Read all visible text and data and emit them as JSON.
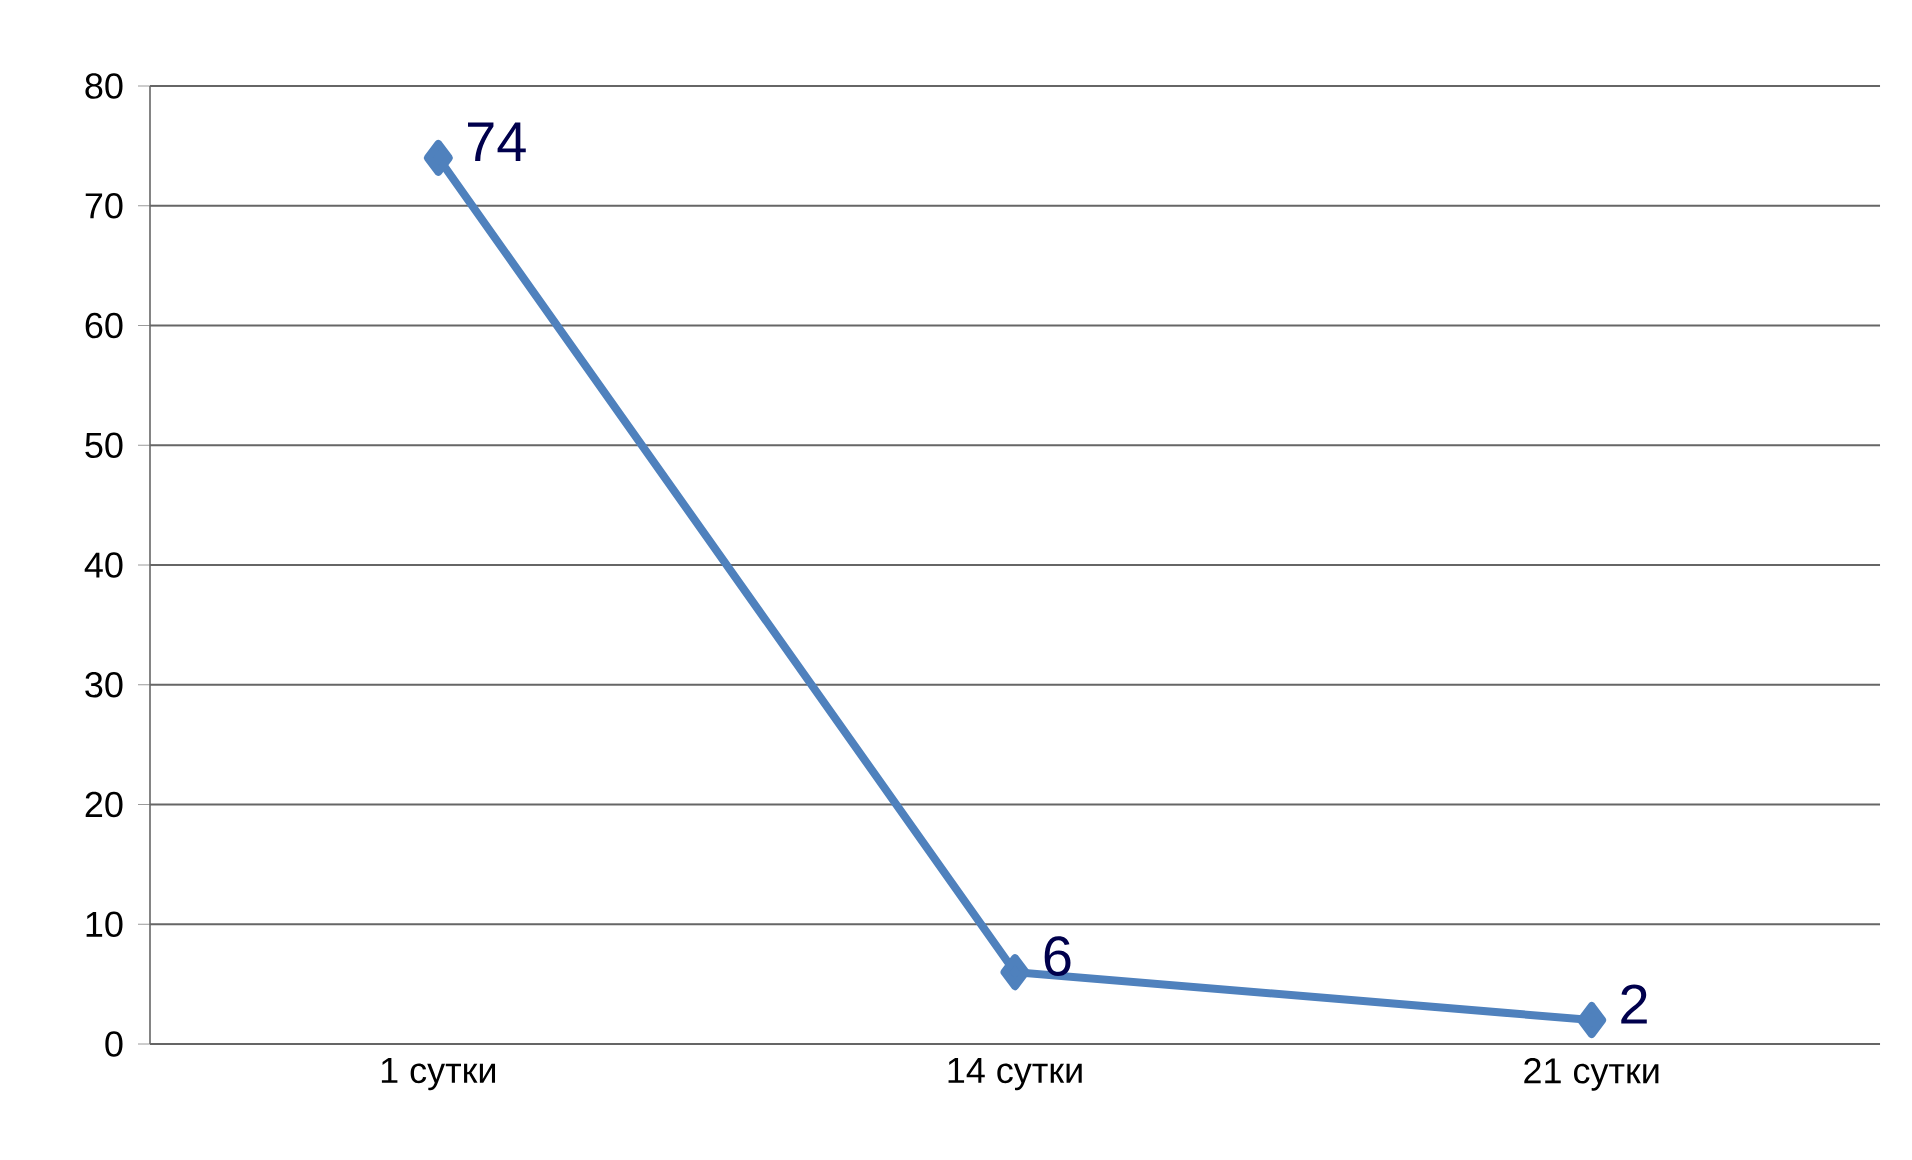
{
  "chart_data": {
    "type": "line",
    "categories": [
      "1 сутки",
      "14 сутки",
      "21 сутки"
    ],
    "series": [
      {
        "color": "#4f81bd",
        "values": [
          74,
          6,
          2
        ],
        "value_labels": [
          "74",
          "6",
          "2"
        ]
      }
    ],
    "ylim": [
      0,
      80
    ],
    "yticks": [
      0,
      10,
      20,
      30,
      40,
      50,
      60,
      70,
      80
    ],
    "grid": "y",
    "marker": "diamond",
    "line_style": "solid"
  }
}
